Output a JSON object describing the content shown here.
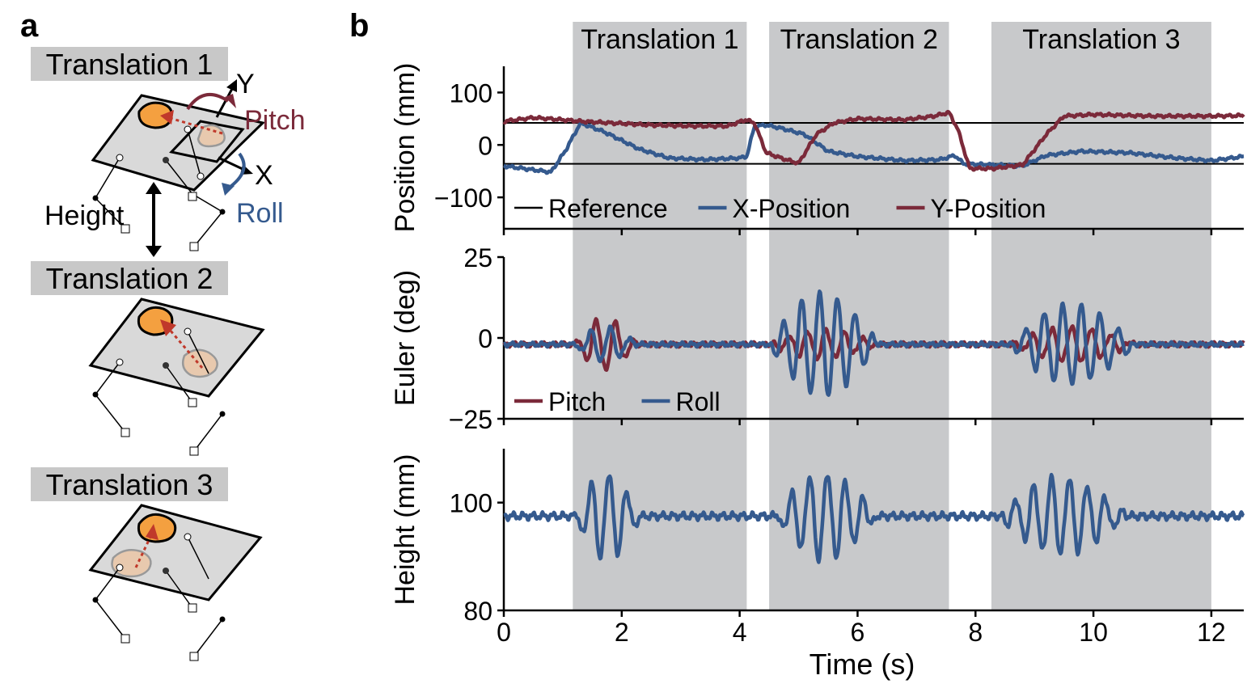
{
  "panel_a": {
    "label": "a",
    "rows": [
      {
        "title": "Translation 1"
      },
      {
        "title": "Translation 2"
      },
      {
        "title": "Translation 3"
      }
    ],
    "axes": {
      "y": "Y",
      "x": "X",
      "pitch": "Pitch",
      "roll": "Roll",
      "height": "Height"
    },
    "colors": {
      "pitch": "#7b2a3a",
      "roll": "#355a8e",
      "target": "#f4a040",
      "ghost": "#e8c9ae",
      "platform": "#d9d9d9",
      "arrow": "#c0392b"
    }
  },
  "panel_b": {
    "label": "b"
  },
  "chart_data": [
    {
      "type": "line",
      "ylabel": "Position (mm)",
      "ylim": [
        -160,
        150
      ],
      "yticks": [
        100,
        0,
        -100
      ],
      "ytick_labels": [
        "100",
        "0",
        "−100"
      ],
      "reference_lines": [
        42,
        -36
      ],
      "legend": [
        "Reference",
        "X-Position",
        "Y-Position"
      ],
      "legend_position": "lower-left",
      "series": [
        {
          "name": "X-Position",
          "color": "#355a8e",
          "x": [
            0,
            0.8,
            1.05,
            1.3,
            1.7,
            2.3,
            2.8,
            3.4,
            4.0,
            4.12,
            4.25,
            4.45,
            4.7,
            5.1,
            5.5,
            6.0,
            6.8,
            7.4,
            7.65,
            7.8,
            8.3,
            8.8,
            9.2,
            9.8,
            10.6,
            11.4,
            12.0,
            12.55
          ],
          "y": [
            -40,
            -52,
            -10,
            42,
            25,
            -8,
            -25,
            -28,
            -25,
            -22,
            35,
            38,
            32,
            20,
            -12,
            -22,
            -30,
            -28,
            -20,
            -36,
            -38,
            -40,
            -20,
            -12,
            -15,
            -25,
            -30,
            -22
          ]
        },
        {
          "name": "Y-Position",
          "color": "#7b2a3a",
          "x": [
            0,
            0.5,
            1.0,
            1.3,
            1.8,
            2.5,
            3.2,
            3.8,
            4.1,
            4.25,
            4.45,
            4.7,
            5.0,
            5.3,
            5.6,
            6.0,
            6.8,
            7.3,
            7.55,
            7.7,
            7.9,
            8.3,
            8.8,
            9.2,
            9.5,
            10.0,
            11.0,
            12.0,
            12.55
          ],
          "y": [
            45,
            52,
            48,
            45,
            42,
            38,
            36,
            36,
            48,
            42,
            -15,
            -25,
            -35,
            20,
            42,
            50,
            48,
            55,
            62,
            30,
            -45,
            -45,
            -38,
            20,
            55,
            58,
            55,
            55,
            56
          ]
        }
      ]
    },
    {
      "type": "line",
      "ylabel": "Euler (deg)",
      "ylim": [
        -25,
        25
      ],
      "yticks": [
        25,
        0,
        -25
      ],
      "ytick_labels": [
        "25",
        "0",
        "−25"
      ],
      "legend": [
        "Pitch",
        "Roll"
      ],
      "legend_position": "lower-left",
      "series": [
        {
          "name": "Pitch",
          "color": "#7b2a3a",
          "base": -2,
          "oscillations": [
            {
              "t0": 1.2,
              "t1": 2.9,
              "amp": 9,
              "freq": 3.0
            },
            {
              "t0": 4.5,
              "t1": 7.5,
              "amp": 5,
              "freq": 3.2
            },
            {
              "t0": 8.6,
              "t1": 12.0,
              "amp": 6,
              "freq": 3.0
            }
          ]
        },
        {
          "name": "Roll",
          "color": "#355a8e",
          "base": -2,
          "oscillations": [
            {
              "t0": 1.2,
              "t1": 2.9,
              "amp": 6,
              "freq": 3.0
            },
            {
              "t0": 4.5,
              "t1": 7.5,
              "amp": 18,
              "freq": 3.3
            },
            {
              "t0": 8.6,
              "t1": 12.0,
              "amp": 14,
              "freq": 3.2
            }
          ]
        }
      ]
    },
    {
      "type": "line",
      "ylabel": "Height (mm)",
      "ylim": [
        80,
        110
      ],
      "yticks": [
        100,
        80
      ],
      "ytick_labels": [
        "100",
        "80"
      ],
      "series": [
        {
          "name": "Height",
          "color": "#355a8e",
          "base": 97.5,
          "oscillations": [
            {
              "t0": 1.2,
              "t1": 3.0,
              "amp": 9,
              "freq": 3.3
            },
            {
              "t0": 4.6,
              "t1": 7.4,
              "amp": 9,
              "freq": 3.3
            },
            {
              "t0": 8.4,
              "t1": 11.9,
              "amp": 8,
              "freq": 3.3
            }
          ]
        }
      ]
    }
  ],
  "shaded_regions": [
    {
      "label": "Translation 1",
      "x0": 1.17,
      "x1": 4.12
    },
    {
      "label": "Translation 2",
      "x0": 4.5,
      "x1": 7.55
    },
    {
      "label": "Translation 3",
      "x0": 8.27,
      "x1": 12.0
    }
  ],
  "xaxis": {
    "label": "Time (s)",
    "xlim": [
      0,
      12.55
    ],
    "ticks": [
      0,
      2,
      4,
      6,
      8,
      10,
      12
    ],
    "tick_labels": [
      "0",
      "2",
      "4",
      "6",
      "8",
      "10",
      "12"
    ]
  }
}
